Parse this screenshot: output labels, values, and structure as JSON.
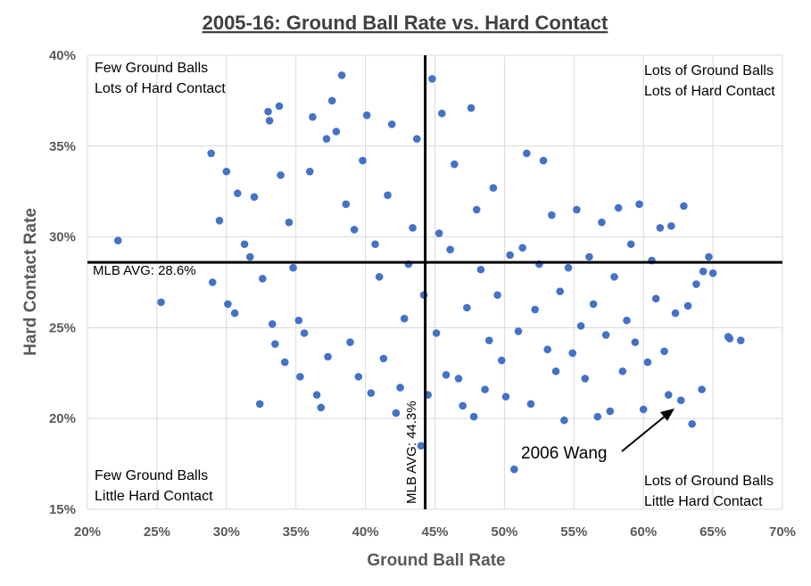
{
  "chart_data": {
    "type": "scatter",
    "title": "2005-16: Ground Ball Rate vs. Hard Contact",
    "xlabel": "Ground Ball Rate",
    "ylabel": "Hard Contact Rate",
    "xlim": [
      0.2,
      0.7
    ],
    "ylim": [
      0.15,
      0.4
    ],
    "x_ticks": [
      0.2,
      0.25,
      0.3,
      0.35,
      0.4,
      0.45,
      0.5,
      0.55,
      0.6,
      0.65,
      0.7
    ],
    "x_tick_labels": [
      "20%",
      "25%",
      "30%",
      "35%",
      "40%",
      "45%",
      "50%",
      "55%",
      "60%",
      "65%",
      "70%"
    ],
    "y_ticks": [
      0.15,
      0.2,
      0.25,
      0.3,
      0.35,
      0.4
    ],
    "y_tick_labels": [
      "15%",
      "20%",
      "25%",
      "30%",
      "35%",
      "40%"
    ],
    "grid": true,
    "color": "#4472c4",
    "points": [
      [
        0.222,
        0.298
      ],
      [
        0.253,
        0.264
      ],
      [
        0.289,
        0.346
      ],
      [
        0.29,
        0.275
      ],
      [
        0.295,
        0.309
      ],
      [
        0.3,
        0.336
      ],
      [
        0.301,
        0.263
      ],
      [
        0.306,
        0.258
      ],
      [
        0.308,
        0.324
      ],
      [
        0.313,
        0.296
      ],
      [
        0.317,
        0.289
      ],
      [
        0.32,
        0.322
      ],
      [
        0.324,
        0.208
      ],
      [
        0.326,
        0.277
      ],
      [
        0.33,
        0.369
      ],
      [
        0.331,
        0.364
      ],
      [
        0.333,
        0.252
      ],
      [
        0.335,
        0.241
      ],
      [
        0.338,
        0.372
      ],
      [
        0.339,
        0.334
      ],
      [
        0.342,
        0.231
      ],
      [
        0.345,
        0.308
      ],
      [
        0.348,
        0.283
      ],
      [
        0.352,
        0.254
      ],
      [
        0.353,
        0.223
      ],
      [
        0.356,
        0.247
      ],
      [
        0.36,
        0.336
      ],
      [
        0.362,
        0.366
      ],
      [
        0.365,
        0.213
      ],
      [
        0.368,
        0.206
      ],
      [
        0.372,
        0.354
      ],
      [
        0.373,
        0.234
      ],
      [
        0.376,
        0.375
      ],
      [
        0.379,
        0.358
      ],
      [
        0.383,
        0.389
      ],
      [
        0.386,
        0.318
      ],
      [
        0.389,
        0.242
      ],
      [
        0.392,
        0.304
      ],
      [
        0.395,
        0.223
      ],
      [
        0.398,
        0.342
      ],
      [
        0.401,
        0.367
      ],
      [
        0.404,
        0.214
      ],
      [
        0.407,
        0.296
      ],
      [
        0.41,
        0.278
      ],
      [
        0.413,
        0.233
      ],
      [
        0.416,
        0.323
      ],
      [
        0.419,
        0.362
      ],
      [
        0.422,
        0.203
      ],
      [
        0.425,
        0.217
      ],
      [
        0.428,
        0.255
      ],
      [
        0.431,
        0.285
      ],
      [
        0.434,
        0.305
      ],
      [
        0.437,
        0.354
      ],
      [
        0.44,
        0.185
      ],
      [
        0.442,
        0.268
      ],
      [
        0.445,
        0.213
      ],
      [
        0.448,
        0.387
      ],
      [
        0.451,
        0.247
      ],
      [
        0.453,
        0.302
      ],
      [
        0.455,
        0.368
      ],
      [
        0.458,
        0.224
      ],
      [
        0.461,
        0.293
      ],
      [
        0.464,
        0.34
      ],
      [
        0.467,
        0.222
      ],
      [
        0.47,
        0.207
      ],
      [
        0.473,
        0.261
      ],
      [
        0.476,
        0.371
      ],
      [
        0.478,
        0.201
      ],
      [
        0.48,
        0.315
      ],
      [
        0.483,
        0.282
      ],
      [
        0.486,
        0.216
      ],
      [
        0.489,
        0.243
      ],
      [
        0.492,
        0.327
      ],
      [
        0.495,
        0.268
      ],
      [
        0.498,
        0.232
      ],
      [
        0.501,
        0.212
      ],
      [
        0.504,
        0.29
      ],
      [
        0.507,
        0.172
      ],
      [
        0.51,
        0.248
      ],
      [
        0.513,
        0.294
      ],
      [
        0.516,
        0.346
      ],
      [
        0.519,
        0.208
      ],
      [
        0.522,
        0.26
      ],
      [
        0.525,
        0.285
      ],
      [
        0.528,
        0.342
      ],
      [
        0.531,
        0.238
      ],
      [
        0.534,
        0.312
      ],
      [
        0.537,
        0.226
      ],
      [
        0.54,
        0.27
      ],
      [
        0.543,
        0.199
      ],
      [
        0.546,
        0.283
      ],
      [
        0.549,
        0.236
      ],
      [
        0.552,
        0.315
      ],
      [
        0.555,
        0.251
      ],
      [
        0.558,
        0.222
      ],
      [
        0.561,
        0.289
      ],
      [
        0.564,
        0.263
      ],
      [
        0.567,
        0.201
      ],
      [
        0.57,
        0.308
      ],
      [
        0.573,
        0.246
      ],
      [
        0.576,
        0.204
      ],
      [
        0.579,
        0.278
      ],
      [
        0.582,
        0.316
      ],
      [
        0.585,
        0.226
      ],
      [
        0.588,
        0.254
      ],
      [
        0.591,
        0.296
      ],
      [
        0.594,
        0.242
      ],
      [
        0.597,
        0.318
      ],
      [
        0.6,
        0.205
      ],
      [
        0.603,
        0.231
      ],
      [
        0.606,
        0.287
      ],
      [
        0.609,
        0.266
      ],
      [
        0.612,
        0.305
      ],
      [
        0.615,
        0.237
      ],
      [
        0.618,
        0.213
      ],
      [
        0.62,
        0.306
      ],
      [
        0.623,
        0.258
      ],
      [
        0.627,
        0.21
      ],
      [
        0.629,
        0.317
      ],
      [
        0.632,
        0.262
      ],
      [
        0.635,
        0.197
      ],
      [
        0.638,
        0.274
      ],
      [
        0.642,
        0.216
      ],
      [
        0.643,
        0.281
      ],
      [
        0.647,
        0.289
      ],
      [
        0.65,
        0.28
      ],
      [
        0.661,
        0.245
      ],
      [
        0.662,
        0.244
      ],
      [
        0.67,
        0.243
      ]
    ],
    "ref_lines": {
      "x": {
        "value": 0.443,
        "label": "MLB AVG: 44.3%"
      },
      "y": {
        "value": 0.286,
        "label": "MLB AVG: 28.6%"
      }
    },
    "quadrant_labels": {
      "top_left": [
        "Few Ground Balls",
        "Lots of Hard Contact"
      ],
      "top_right": [
        "Lots of Ground Balls",
        "Lots of Hard Contact"
      ],
      "bottom_left": [
        "Few Ground Balls",
        "Little Hard Contact"
      ],
      "bottom_right": [
        "Lots of Ground Balls",
        "Little Hard Contact"
      ]
    },
    "annotation": {
      "text": "2006 Wang",
      "x": 0.627,
      "y": 0.21
    }
  }
}
